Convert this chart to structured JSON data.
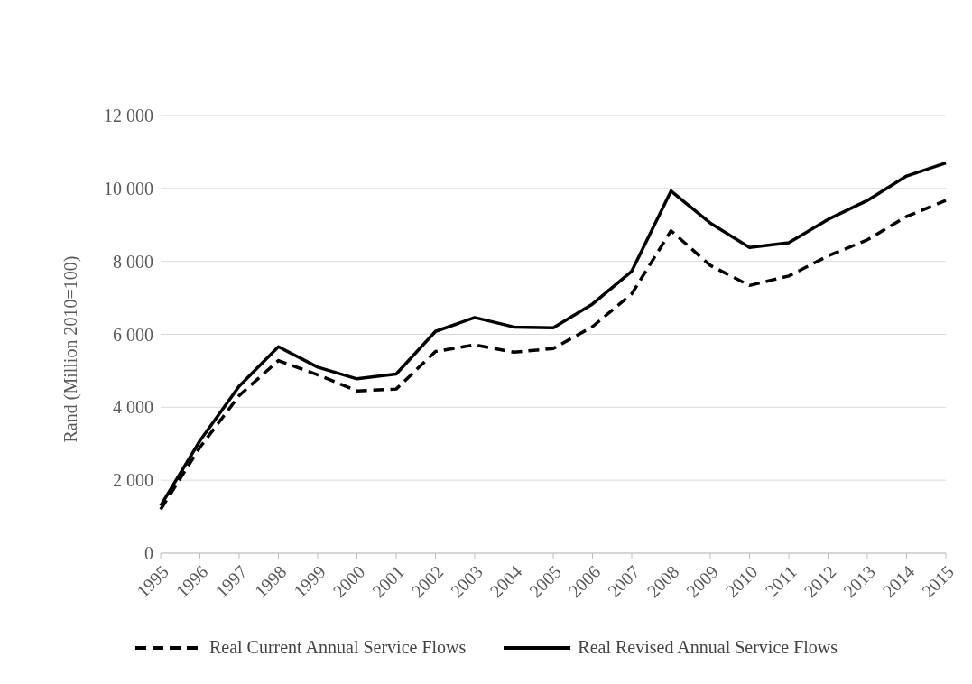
{
  "chart_data": {
    "type": "line",
    "ylabel": "Rand (Million 2010=100)",
    "categories": [
      "1995",
      "1996",
      "1997",
      "1998",
      "1999",
      "2000",
      "2001",
      "2002",
      "2003",
      "2004",
      "2005",
      "2006",
      "2007",
      "2008",
      "2009",
      "2010",
      "2011",
      "2012",
      "2013",
      "2014",
      "2015"
    ],
    "series": [
      {
        "name": "Real Current  Annual Service Flows",
        "color": "#000000",
        "line_style": "dashed",
        "values": [
          1200,
          2900,
          4320,
          5280,
          4890,
          4450,
          4500,
          5530,
          5710,
          5510,
          5610,
          6210,
          7110,
          8840,
          7890,
          7340,
          7600,
          8150,
          8590,
          9230,
          9670
        ]
      },
      {
        "name": "Real Revised Annual Service Flows",
        "color": "#000000",
        "line_style": "solid",
        "values": [
          1300,
          3080,
          4580,
          5660,
          5100,
          4780,
          4910,
          6080,
          6460,
          6200,
          6180,
          6830,
          7730,
          9930,
          9050,
          8380,
          8510,
          9150,
          9670,
          10340,
          10700
        ]
      }
    ],
    "ylim": [
      0,
      12000
    ],
    "yticks": [
      {
        "value": 0,
        "label": "0"
      },
      {
        "value": 2000,
        "label": "2 000"
      },
      {
        "value": 4000,
        "label": "4 000"
      },
      {
        "value": 6000,
        "label": "6 000"
      },
      {
        "value": 8000,
        "label": "8 000"
      },
      {
        "value": 10000,
        "label": "10 000"
      },
      {
        "value": 12000,
        "label": "12 000"
      }
    ],
    "grid": "y",
    "legend": "bottom",
    "marker": "none"
  }
}
